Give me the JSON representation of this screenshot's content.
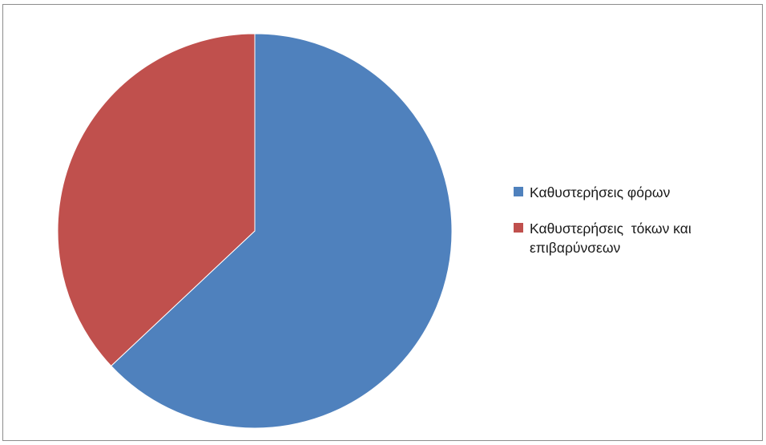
{
  "chart_data": {
    "type": "pie",
    "title": "",
    "legend_position": "right",
    "slices": [
      {
        "label": "Καθυστερήσεις φόρων",
        "value": 63,
        "color": "#4f81bd"
      },
      {
        "label": "Καθυστερήσεις  τόκων και επιβαρύνσεων",
        "value": 37,
        "color": "#c0504d"
      }
    ]
  }
}
